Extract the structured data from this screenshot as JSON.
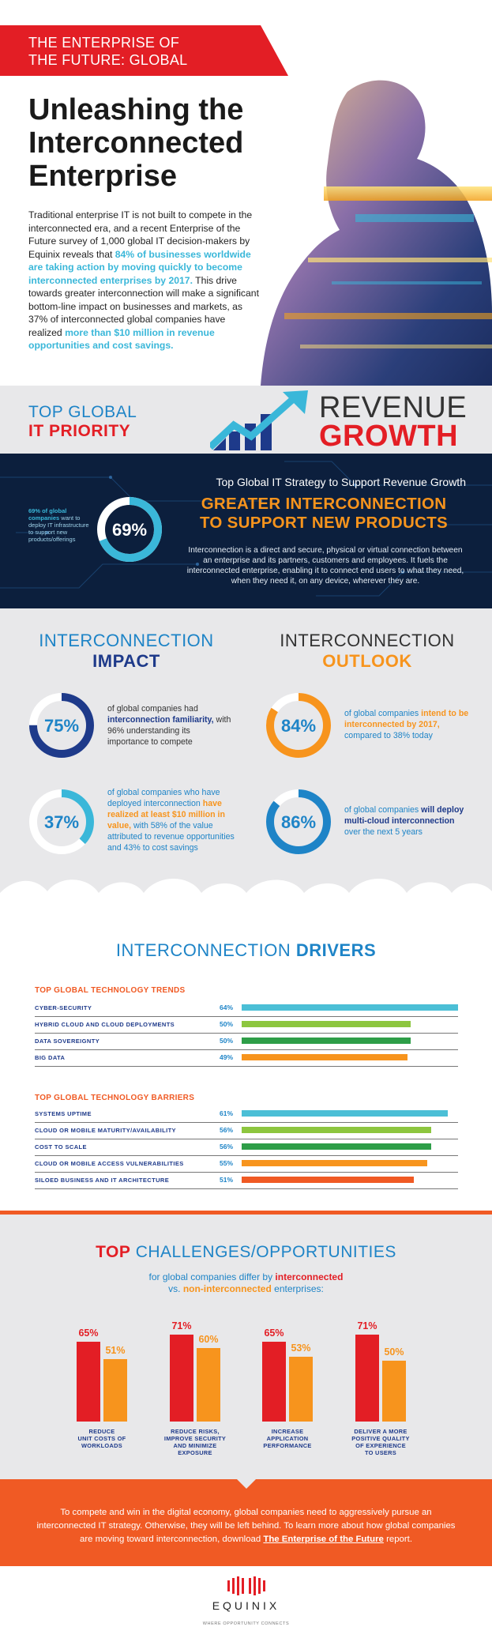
{
  "header": {
    "tag_line1": "THE ENTERPRISE OF",
    "tag_line2": "THE FUTURE: GLOBAL",
    "title_line1": "Unleashing the",
    "title_line2": "Interconnected",
    "title_line3": "Enterprise",
    "intro_part1": "Traditional enterprise IT is not built to compete in the interconnected era, and a recent Enterprise of the Future survey of 1,000 global IT decision-makers by Equinix reveals that ",
    "intro_highlight1": "84% of businesses worldwide are taking action by moving quickly to become interconnected enterprises by 2017.",
    "intro_part2": " This drive towards greater interconnection will make a significant bottom-line impact on businesses and markets, as 37% of interconnected global companies have realized ",
    "intro_highlight2": "more than $10 million in revenue opportunities and cost savings."
  },
  "priority": {
    "left_line1": "TOP GLOBAL",
    "left_line2": "IT PRIORITY",
    "right_line1": "REVENUE",
    "right_line2": "GROWTH"
  },
  "strategy": {
    "small_bold": "69% of global companies",
    "small_rest": " want to deploy IT infrastructure to support new products/offerings",
    "percent": "69%",
    "title": "Top Global IT Strategy to Support Revenue Growth",
    "headline_line1": "GREATER INTERCONNECTION",
    "headline_line2": "TO SUPPORT NEW PRODUCTS",
    "description": "Interconnection is a direct and secure, physical or virtual connection between an enterprise and its partners, customers and employees. It fuels the interconnected enterprise, enabling it to connect end users to what they need, when they need it, on any device, wherever they are."
  },
  "impact": {
    "heading_line1": "INTERCONNECTION",
    "heading_line2": "IMPACT",
    "stat1": {
      "value": 75,
      "label": "75%",
      "text1": "of global companies had ",
      "bold": "interconnection familiarity,",
      "text2": " with 96% understanding its importance to compete"
    },
    "stat2": {
      "value": 37,
      "label": "37%",
      "text1": "of global companies who have deployed interconnection ",
      "bold": "have realized at least $10 million in value,",
      "text2": " with 58% of the value attributed to revenue opportunities and 43% to cost savings"
    }
  },
  "outlook": {
    "heading_line1": "INTERCONNECTION",
    "heading_line2": "OUTLOOK",
    "stat1": {
      "value": 84,
      "label": "84%",
      "text1": "of global companies ",
      "bold": "intend to be interconnected by 2017,",
      "text2": " compared to 38% today"
    },
    "stat2": {
      "value": 86,
      "label": "86%",
      "text1": "of global companies ",
      "bold": "will deploy multi-cloud interconnection",
      "text2": " over the next 5 years"
    }
  },
  "drivers": {
    "title_part1": "INTERCONNECTION ",
    "title_part2": "DRIVERS",
    "trends_heading": "TOP GLOBAL TECHNOLOGY TRENDS",
    "trends": [
      {
        "label": "CYBER-SECURITY",
        "pct": "64%",
        "value": 64,
        "color": "#4bbfd6"
      },
      {
        "label": "HYBRID CLOUD AND CLOUD DEPLOYMENTS",
        "pct": "50%",
        "value": 50,
        "color": "#8dc63f"
      },
      {
        "label": "DATA SOVEREIGNTY",
        "pct": "50%",
        "value": 50,
        "color": "#2e9e48"
      },
      {
        "label": "BIG DATA",
        "pct": "49%",
        "value": 49,
        "color": "#f7941d"
      }
    ],
    "barriers_heading": "TOP GLOBAL TECHNOLOGY BARRIERS",
    "barriers": [
      {
        "label": "SYSTEMS UPTIME",
        "pct": "61%",
        "value": 61,
        "color": "#4bbfd6"
      },
      {
        "label": "CLOUD OR MOBILE MATURITY/AVAILABILITY",
        "pct": "56%",
        "value": 56,
        "color": "#8dc63f"
      },
      {
        "label": "COST TO SCALE",
        "pct": "56%",
        "value": 56,
        "color": "#2e9e48"
      },
      {
        "label": "CLOUD OR MOBILE ACCESS VULNERABILITIES",
        "pct": "55%",
        "value": 55,
        "color": "#f7941d"
      },
      {
        "label": "SILOED BUSINESS AND IT ARCHITECTURE",
        "pct": "51%",
        "value": 51,
        "color": "#f05a24"
      }
    ]
  },
  "challenges": {
    "title_part1": "TOP",
    "title_part2": " CHALLENGES/OPPORTUNITIES",
    "sub_line1_text": "for global companies differ by ",
    "sub_line1_bold": "interconnected",
    "sub_line2_text1": "vs. ",
    "sub_line2_bold": "non-interconnected",
    "sub_line2_text2": " enterprises:",
    "interconnected_color": "#e31e25",
    "non_interconnected_color": "#f7941d"
  },
  "chart_data": {
    "type": "bar",
    "categories": [
      "REDUCE UNIT COSTS OF WORKLOADS",
      "REDUCE RISKS, IMPROVE SECURITY AND MINIMIZE EXPOSURE",
      "INCREASE APPLICATION PERFORMANCE",
      "DELIVER A MORE POSITIVE QUALITY OF EXPERIENCE TO USERS"
    ],
    "category_lines": [
      [
        "REDUCE",
        "UNIT COSTS OF",
        "WORKLOADS"
      ],
      [
        "REDUCE RISKS,",
        "IMPROVE SECURITY",
        "AND MINIMIZE",
        "EXPOSURE"
      ],
      [
        "INCREASE",
        "APPLICATION",
        "PERFORMANCE"
      ],
      [
        "DELIVER A MORE",
        "POSITIVE QUALITY",
        "OF EXPERIENCE",
        "TO USERS"
      ]
    ],
    "series": [
      {
        "name": "interconnected",
        "values": [
          65,
          71,
          65,
          71
        ],
        "labels": [
          "65%",
          "71%",
          "65%",
          "71%"
        ],
        "color": "#e31e25"
      },
      {
        "name": "non-interconnected",
        "values": [
          51,
          60,
          53,
          50
        ],
        "labels": [
          "51%",
          "60%",
          "53%",
          "50%"
        ],
        "color": "#f7941d"
      }
    ],
    "ylim": [
      0,
      100
    ],
    "grid": false
  },
  "footer": {
    "text1": "To compete and win in the digital economy, global companies need to aggressively pursue an interconnected IT strategy. Otherwise, they will be left behind. To learn more about how global companies are moving toward interconnection, download ",
    "link": "The Enterprise of the Future",
    "text2": " report.",
    "logo_word": "EQUINIX",
    "logo_tagline": "WHERE OPPORTUNITY CONNECTS"
  }
}
